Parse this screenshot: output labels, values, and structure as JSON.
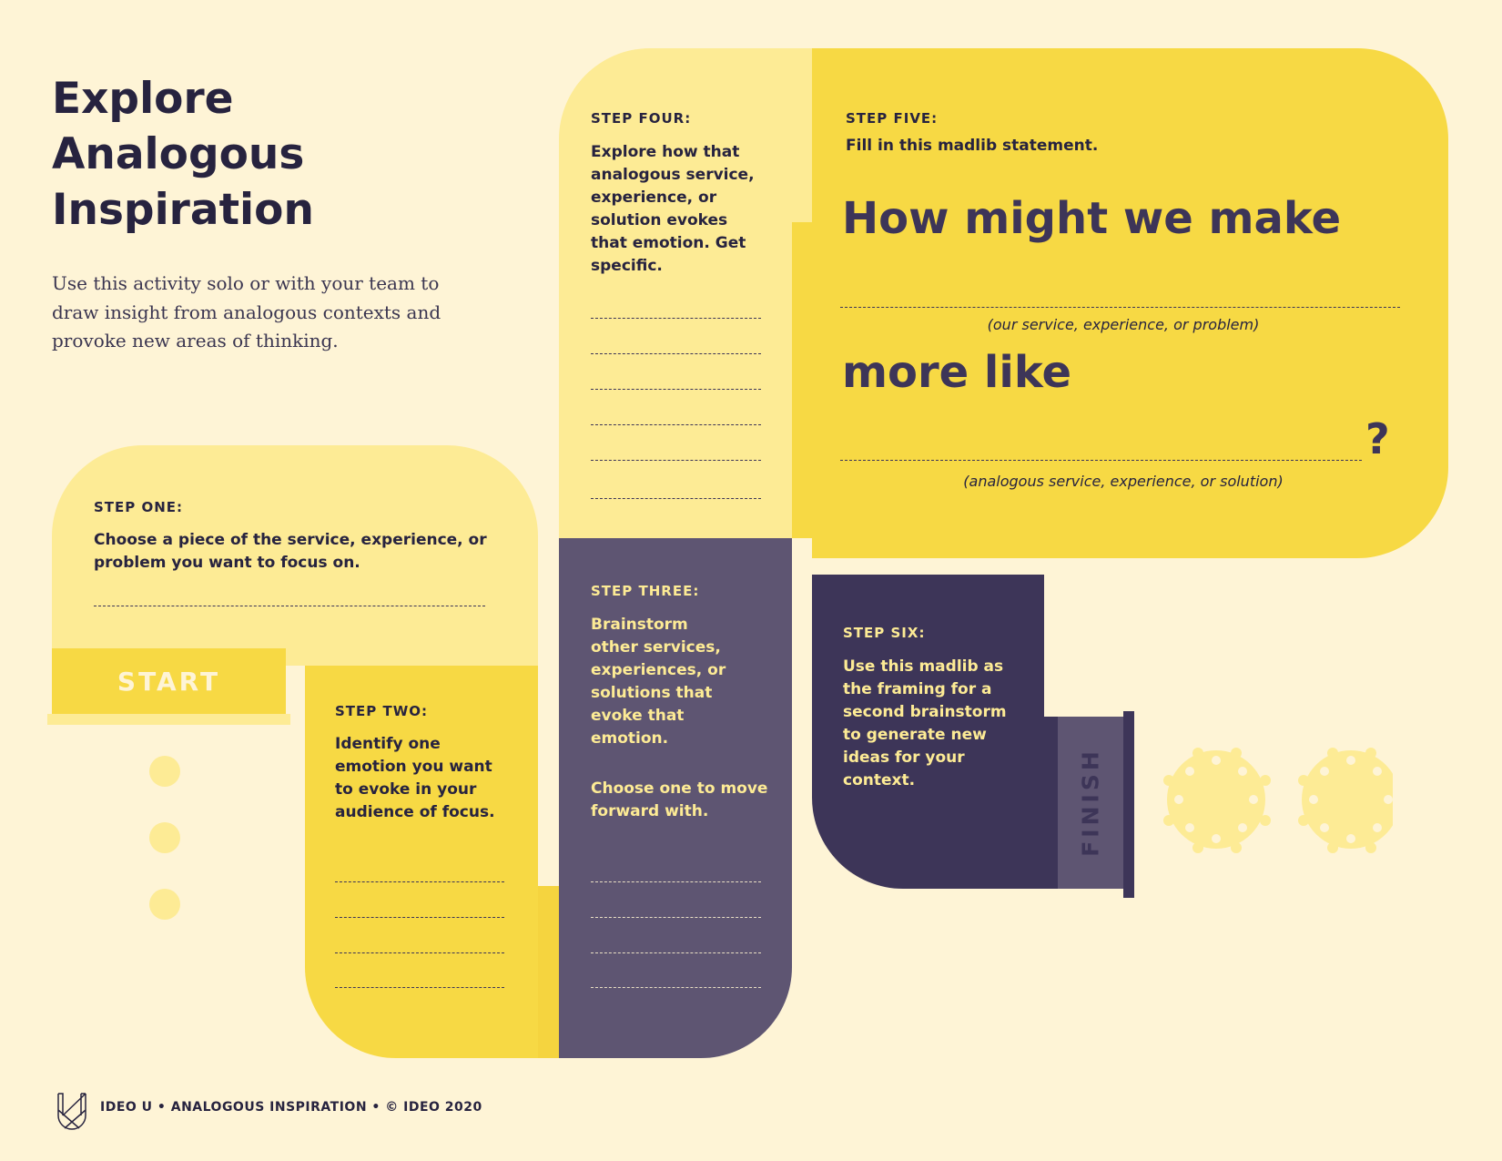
{
  "title": [
    "Explore",
    "Analogous",
    "Inspiration"
  ],
  "description": "Use this activity solo or with your team to draw insight from analogous contexts and provoke new areas of thinking.",
  "colors": {
    "background": "#fef4d6",
    "light_yellow": "#fdeb95",
    "yellow": "#f7d944",
    "dark_purple": "#3d3558",
    "mid_purple": "#5e5572",
    "text": "#27233f"
  },
  "start_label": "START",
  "finish_label": "FINISH",
  "steps": {
    "one": {
      "label": "STEP ONE:",
      "text": "Choose a piece of the service, experience, or problem you want to focus on."
    },
    "two": {
      "label": "STEP TWO:",
      "text": "Identify one emotion you want to evoke in your audience of focus."
    },
    "three": {
      "label": "STEP THREE:",
      "text": "Brainstorm other services, experiences, or solutions that evoke that emotion.",
      "text2": "Choose one to move forward with."
    },
    "four": {
      "label": "STEP FOUR:",
      "text": "Explore how that analogous service, experience, or solution evokes that emotion. Get specific."
    },
    "five": {
      "label": "STEP FIVE:",
      "text": "Fill in this madlib statement.",
      "line1": "How might we make",
      "caption1": "(our service, experience, or problem)",
      "line2": "more like",
      "question": "?",
      "caption2": "(analogous service, experience, or solution)"
    },
    "six": {
      "label": "STEP SIX:",
      "text": "Use this madlib as the framing for a second brainstorm to generate new ideas for your context."
    }
  },
  "footer": {
    "logo": "IDEO U",
    "text": "IDEO U • ANALOGOUS INSPIRATION • © IDEO 2020"
  }
}
